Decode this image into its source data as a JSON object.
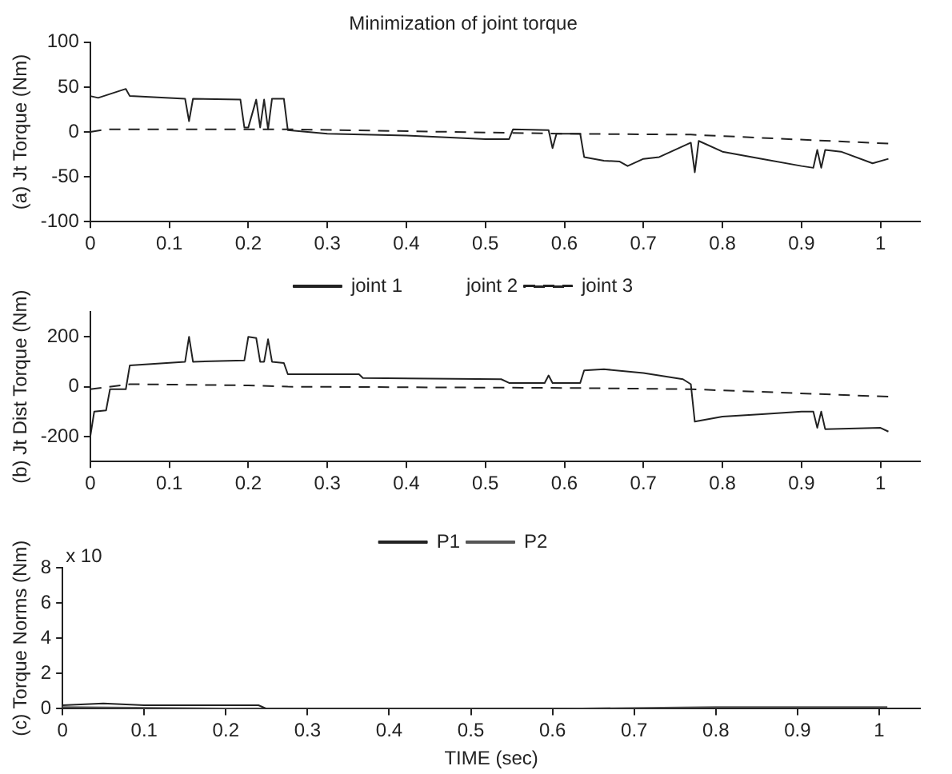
{
  "chart_data": [
    {
      "type": "line",
      "title": "Minimization of joint torque",
      "ylabel": "(a) Jt Torque (Nm)",
      "xlim": [
        0,
        1.05
      ],
      "xticks": [
        0,
        0.1,
        0.2,
        0.3,
        0.4,
        0.5,
        0.6,
        0.7,
        0.8,
        0.9,
        1
      ],
      "ylim": [
        -100,
        100
      ],
      "yticks": [
        -100,
        -50,
        0,
        50,
        100
      ],
      "grid": false,
      "legend": false,
      "marker": "none",
      "series": [
        {
          "color": "#222222",
          "line_style": "solid",
          "x": [
            0,
            0.01,
            0.045,
            0.05,
            0.12,
            0.125,
            0.13,
            0.19,
            0.195,
            0.2,
            0.21,
            0.215,
            0.22,
            0.225,
            0.23,
            0.245,
            0.25,
            0.3,
            0.4,
            0.5,
            0.53,
            0.535,
            0.58,
            0.585,
            0.59,
            0.62,
            0.625,
            0.65,
            0.67,
            0.68,
            0.7,
            0.72,
            0.76,
            0.765,
            0.77,
            0.8,
            0.85,
            0.9,
            0.915,
            0.92,
            0.925,
            0.93,
            0.95,
            0.99,
            1.01
          ],
          "values": [
            40,
            38,
            48,
            40,
            37,
            12,
            37,
            36,
            5,
            5,
            36,
            5,
            36,
            3,
            37,
            37,
            2,
            -2,
            -4,
            -8,
            -8,
            3,
            2,
            -18,
            -2,
            -2,
            -28,
            -32,
            -33,
            -38,
            -30,
            -28,
            -12,
            -45,
            -10,
            -22,
            -30,
            -38,
            -40,
            -20,
            -40,
            -20,
            -22,
            -35,
            -30
          ]
        },
        {
          "color": "#222222",
          "line_style": "dashed",
          "x": [
            0,
            0.02,
            0.25,
            0.6,
            0.76,
            1.01
          ],
          "values": [
            0,
            3,
            3,
            -2,
            -3,
            -13
          ]
        }
      ]
    },
    {
      "type": "line",
      "ylabel": "(b) Jt Dist Torque (Nm)",
      "annotations": [
        "joint 2"
      ],
      "xlim": [
        0,
        1.05
      ],
      "xticks": [
        0,
        0.1,
        0.2,
        0.3,
        0.4,
        0.5,
        0.6,
        0.7,
        0.8,
        0.9,
        1
      ],
      "ylim": [
        -300,
        300
      ],
      "yticks": [
        -200,
        0,
        200
      ],
      "grid": false,
      "legend": "top",
      "marker": "none",
      "series": [
        {
          "name": "joint 1",
          "color": "#222222",
          "line_style": "solid",
          "x": [
            0,
            0.005,
            0.02,
            0.025,
            0.045,
            0.05,
            0.12,
            0.125,
            0.13,
            0.195,
            0.2,
            0.21,
            0.215,
            0.22,
            0.225,
            0.23,
            0.245,
            0.25,
            0.34,
            0.345,
            0.52,
            0.53,
            0.575,
            0.58,
            0.585,
            0.62,
            0.625,
            0.65,
            0.7,
            0.75,
            0.76,
            0.765,
            0.8,
            0.85,
            0.9,
            0.915,
            0.92,
            0.925,
            0.93,
            1,
            1.01
          ],
          "values": [
            -200,
            -100,
            -95,
            -10,
            -10,
            85,
            100,
            200,
            100,
            105,
            200,
            195,
            100,
            100,
            190,
            100,
            95,
            50,
            50,
            35,
            30,
            15,
            15,
            45,
            15,
            15,
            65,
            70,
            55,
            30,
            10,
            -140,
            -120,
            -110,
            -100,
            -100,
            -165,
            -100,
            -170,
            -165,
            -180
          ]
        },
        {
          "name": "joint 3",
          "color": "#222222",
          "line_style": "dashed",
          "x": [
            0,
            0.05,
            0.2,
            0.25,
            0.6,
            0.76,
            1.01
          ],
          "values": [
            -10,
            10,
            5,
            0,
            -5,
            -10,
            -40
          ]
        }
      ]
    },
    {
      "type": "line",
      "ylabel": "(c) Torque Norms (Nm)",
      "xlabel": "TIME (sec)",
      "annotations": [
        "x 10"
      ],
      "xlim": [
        0,
        1.05
      ],
      "xticks": [
        0,
        0.1,
        0.2,
        0.3,
        0.4,
        0.5,
        0.6,
        0.7,
        0.8,
        0.9,
        1
      ],
      "ylim": [
        0,
        8
      ],
      "yticks": [
        0,
        2,
        4,
        6,
        8
      ],
      "grid": false,
      "legend": "top",
      "marker": "none",
      "series": [
        {
          "name": "P1",
          "color": "#222222",
          "line_style": "solid",
          "x": [
            0,
            0.05,
            0.1,
            0.2,
            0.24,
            0.25,
            1.01
          ],
          "values": [
            0.2,
            0.3,
            0.2,
            0.2,
            0.2,
            0,
            0
          ]
        },
        {
          "name": "P2",
          "color": "#555555",
          "line_style": "solid",
          "x": [
            0,
            0.25,
            0.6,
            0.8,
            1.01
          ],
          "values": [
            0.1,
            0,
            0,
            0.1,
            0.1
          ]
        }
      ]
    }
  ]
}
